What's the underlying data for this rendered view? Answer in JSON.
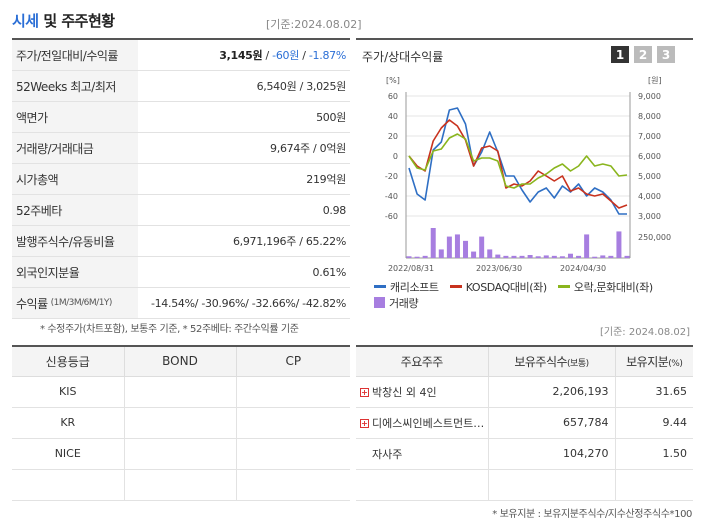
{
  "header": {
    "title_accent": "시세",
    "title_rest": "및 주주현황",
    "base_date": "[기준:2024.08.02]"
  },
  "stats": [
    {
      "label": "주가/전일대비/수익률",
      "price": "3,145원",
      "sep1": " / ",
      "change": "-60원",
      "sep2": " / ",
      "rate": "-1.87%"
    },
    {
      "label": "52Weeks 최고/최저",
      "value": "6,540원 / 3,025원"
    },
    {
      "label": "액면가",
      "value": "500원"
    },
    {
      "label": "거래량/거래대금",
      "value": "9,674주 / 0억원"
    },
    {
      "label": "시가총액",
      "value": "219억원"
    },
    {
      "label": "52주베타",
      "value": "0.98"
    },
    {
      "label": "발행주식수/유동비율",
      "value": "6,971,196주 / 65.22%"
    },
    {
      "label": "외국인지분율",
      "value": "0.61%"
    },
    {
      "label": "수익률",
      "label_small": "(1M/3M/6M/1Y)",
      "value": "-14.54%/ -30.96%/ -32.66%/ -42.82%"
    }
  ],
  "stats_note": "* 수정주가(차트포함), 보통주 기준, * 52주베타: 주간수익률 기준",
  "chart_panel": {
    "title": "주가/상대수익률",
    "pages": [
      "1",
      "2",
      "3"
    ],
    "active_page": "1",
    "base_date": "[기준: 2024.08.02]"
  },
  "chart_data": {
    "type": "line",
    "left_axis_label": "[%]",
    "right_axis_label": "[원]",
    "left_ticks": [
      "60",
      "40",
      "20",
      "0",
      "-20",
      "-40",
      "-60"
    ],
    "right_ticks": [
      "9,000",
      "8,000",
      "7,000",
      "6,000",
      "5,000",
      "4,000",
      "3,000"
    ],
    "volume_tick": "250,000",
    "x_ticks": [
      "2022/08/31",
      "2023/06/30",
      "2024/04/30"
    ],
    "ylim_left": [
      -60,
      60
    ],
    "ylim_right": [
      3000,
      9000
    ],
    "series": [
      {
        "name": "캐리소프트",
        "color": "#2f6fc4",
        "axis": "right",
        "values": [
          5400,
          4100,
          3800,
          6300,
          6700,
          8300,
          8400,
          7600,
          5500,
          6200,
          7200,
          6200,
          5000,
          5000,
          4300,
          3700,
          4200,
          4400,
          3900,
          4500,
          4200,
          4600,
          4000,
          4400,
          4200,
          3800,
          3100,
          3100
        ]
      },
      {
        "name": "KOSDAQ대비(좌)",
        "color": "#c8321e",
        "axis": "left",
        "values": [
          0,
          -10,
          -15,
          15,
          28,
          36,
          30,
          16,
          -10,
          8,
          10,
          5,
          -32,
          -28,
          -30,
          -25,
          -15,
          -20,
          -25,
          -20,
          -35,
          -32,
          -38,
          -40,
          -38,
          -45,
          -52,
          -49
        ]
      },
      {
        "name": "오락,문화대비(좌)",
        "color": "#8ab51e",
        "axis": "left",
        "values": [
          0,
          -12,
          -14,
          5,
          7,
          18,
          22,
          17,
          -5,
          -2,
          -2,
          -5,
          -30,
          -32,
          -28,
          -28,
          -22,
          -18,
          -12,
          -8,
          -15,
          -10,
          0,
          -10,
          -8,
          -10,
          -20,
          -19
        ]
      },
      {
        "name": "거래량",
        "color": "#a77ee0",
        "axis": "volume",
        "values": [
          4,
          3,
          5,
          70,
          20,
          50,
          55,
          40,
          15,
          50,
          20,
          8,
          5,
          5,
          5,
          7,
          4,
          6,
          5,
          4,
          10,
          5,
          55,
          3,
          6,
          5,
          62,
          5
        ]
      }
    ]
  },
  "credit": {
    "headers": [
      "신용등급",
      "BOND",
      "CP"
    ],
    "rows": [
      [
        "KIS",
        "",
        ""
      ],
      [
        "KR",
        "",
        ""
      ],
      [
        "NICE",
        "",
        ""
      ],
      [
        "",
        "",
        ""
      ]
    ]
  },
  "holders": {
    "headers": [
      "주요주주",
      "보유주식수",
      "(보통)",
      "보유지분",
      "(%)"
    ],
    "rows": [
      {
        "name": "박창신 외 4인",
        "shares": "2,206,193",
        "pct": "31.65",
        "expand": true
      },
      {
        "name": "디에스씨인베스트먼트…",
        "shares": "657,784",
        "pct": "9.44",
        "expand": true
      },
      {
        "name": "자사주",
        "shares": "104,270",
        "pct": "1.50",
        "expand": false
      },
      {
        "name": "",
        "shares": "",
        "pct": "",
        "expand": false
      }
    ],
    "plus_symbol": "+",
    "note": "* 보유지분 : 보유지분주식수/지수산정주식수*100"
  }
}
